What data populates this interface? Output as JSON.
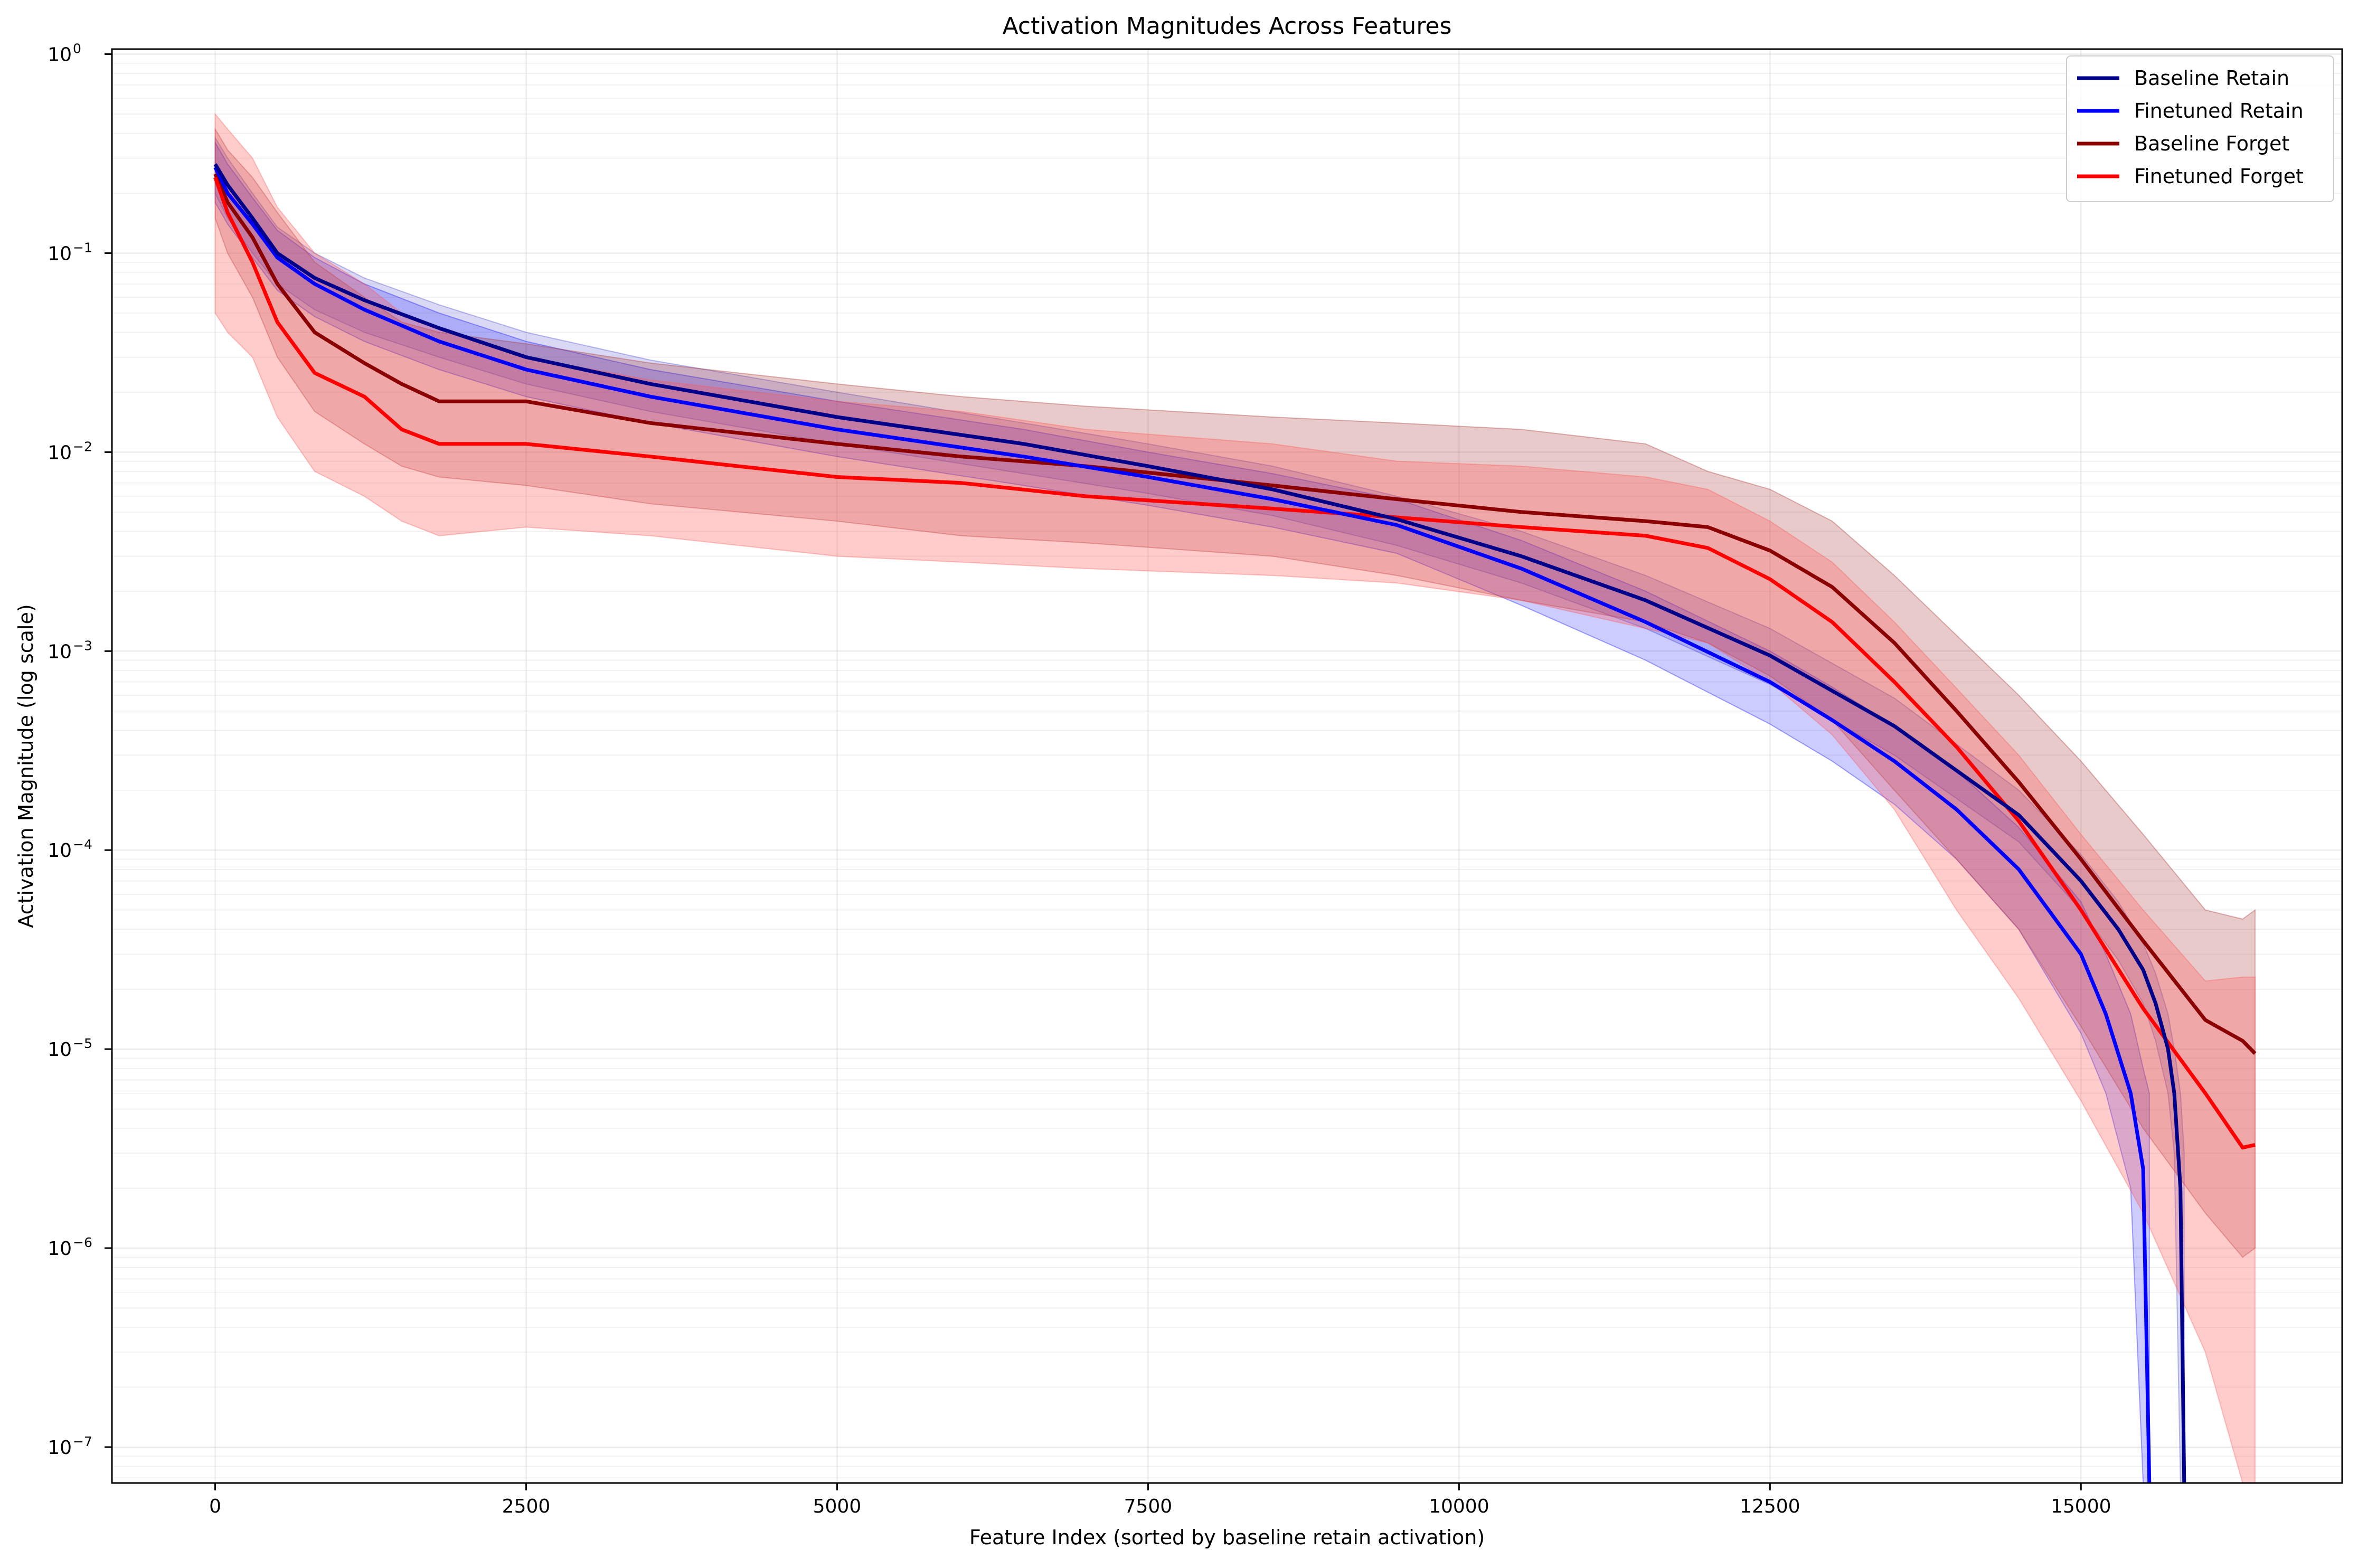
{
  "chart_data": {
    "type": "line",
    "title": "Activation Magnitudes Across Features",
    "xlabel": "Feature Index (sorted by baseline retain activation)",
    "ylabel": "Activation Magnitude (log scale)",
    "xlim": [
      -830,
      17100
    ],
    "ylim": [
      6.6e-08,
      1.06
    ],
    "yscale": "log",
    "grid": true,
    "legend_position": "upper-right",
    "x_ticks": [
      0,
      2500,
      5000,
      7500,
      10000,
      12500,
      15000
    ],
    "x_tick_labels": [
      "0",
      "2500",
      "5000",
      "7500",
      "10000",
      "12500",
      "15000"
    ],
    "y_ticks": [
      {
        "value": 1e-07,
        "base": "10",
        "exp": "−7"
      },
      {
        "value": 1e-06,
        "base": "10",
        "exp": "−6"
      },
      {
        "value": 1e-05,
        "base": "10",
        "exp": "−5"
      },
      {
        "value": 0.0001,
        "base": "10",
        "exp": "−4"
      },
      {
        "value": 0.001,
        "base": "10",
        "exp": "−3"
      },
      {
        "value": 0.01,
        "base": "10",
        "exp": "−2"
      },
      {
        "value": 0.1,
        "base": "10",
        "exp": "−1"
      },
      {
        "value": 1,
        "base": "10",
        "exp": "0"
      }
    ],
    "series": [
      {
        "name": "Baseline Retain",
        "color": "#00008b",
        "band_color": "#4040cc",
        "band_opacity": 0.2,
        "x": [
          0,
          100,
          300,
          500,
          800,
          1200,
          1800,
          2500,
          3500,
          5000,
          6500,
          7500,
          8500,
          9500,
          10500,
          11500,
          12500,
          13500,
          14500,
          15000,
          15300,
          15500,
          15600,
          15700,
          15750,
          15800,
          15830
        ],
        "y": [
          0.28,
          0.22,
          0.15,
          0.1,
          0.075,
          0.058,
          0.042,
          0.03,
          0.022,
          0.015,
          0.011,
          0.0085,
          0.0065,
          0.0046,
          0.003,
          0.0018,
          0.00095,
          0.00042,
          0.00015,
          7e-05,
          4e-05,
          2.5e-05,
          1.7e-05,
          1e-05,
          6e-06,
          2e-06,
          6.6e-08
        ],
        "lower": [
          0.2,
          0.15,
          0.1,
          0.07,
          0.052,
          0.04,
          0.03,
          0.022,
          0.016,
          0.011,
          0.0078,
          0.0062,
          0.0048,
          0.0034,
          0.0022,
          0.0013,
          0.00068,
          0.0003,
          0.00011,
          5e-05,
          2.8e-05,
          1.7e-05,
          1.1e-05,
          6e-06,
          3e-06,
          6.6e-08,
          6.6e-08
        ],
        "upper": [
          0.38,
          0.3,
          0.2,
          0.135,
          0.1,
          0.075,
          0.055,
          0.04,
          0.029,
          0.02,
          0.014,
          0.011,
          0.0085,
          0.006,
          0.004,
          0.0024,
          0.0013,
          0.00058,
          0.0002,
          9.5e-05,
          5.5e-05,
          3.4e-05,
          2.4e-05,
          1.5e-05,
          1e-05,
          6e-06,
          3e-06
        ]
      },
      {
        "name": "Finetuned Retain",
        "color": "#0000ff",
        "band_color": "#0000ff",
        "band_opacity": 0.2,
        "x": [
          0,
          100,
          300,
          500,
          800,
          1200,
          1800,
          2500,
          3500,
          5000,
          6500,
          7500,
          8500,
          9500,
          10500,
          11500,
          12500,
          13000,
          13500,
          14000,
          14500,
          15000,
          15200,
          15400,
          15500,
          15550
        ],
        "y": [
          0.27,
          0.2,
          0.14,
          0.095,
          0.07,
          0.052,
          0.036,
          0.026,
          0.019,
          0.013,
          0.0095,
          0.0075,
          0.0058,
          0.0043,
          0.0026,
          0.0014,
          0.0007,
          0.00045,
          0.00028,
          0.00016,
          8e-05,
          3e-05,
          1.5e-05,
          6e-06,
          2.5e-06,
          6.6e-08
        ],
        "lower": [
          0.18,
          0.14,
          0.095,
          0.065,
          0.048,
          0.036,
          0.026,
          0.019,
          0.014,
          0.0095,
          0.0068,
          0.0054,
          0.0042,
          0.0031,
          0.0017,
          0.0009,
          0.00043,
          0.00028,
          0.00017,
          9e-05,
          4e-05,
          1.2e-05,
          6e-06,
          2e-06,
          6.6e-08,
          6.6e-08
        ],
        "upper": [
          0.36,
          0.28,
          0.19,
          0.13,
          0.095,
          0.07,
          0.05,
          0.036,
          0.026,
          0.018,
          0.013,
          0.01,
          0.0078,
          0.0058,
          0.0036,
          0.002,
          0.001,
          0.00066,
          0.00042,
          0.00025,
          0.00013,
          5.5e-05,
          3e-05,
          1.5e-05,
          8e-06,
          6e-06
        ]
      },
      {
        "name": "Baseline Forget",
        "color": "#8b0000",
        "band_color": "#a52a2a",
        "band_opacity": 0.25,
        "x": [
          0,
          100,
          300,
          500,
          800,
          1200,
          1500,
          1800,
          2500,
          3500,
          5000,
          6000,
          7000,
          8500,
          9500,
          10500,
          11500,
          12000,
          12500,
          13000,
          13500,
          14000,
          14500,
          15000,
          15500,
          16000,
          16300,
          16400
        ],
        "y": [
          0.25,
          0.18,
          0.12,
          0.07,
          0.04,
          0.028,
          0.022,
          0.018,
          0.018,
          0.014,
          0.011,
          0.0095,
          0.0085,
          0.0068,
          0.0058,
          0.005,
          0.0045,
          0.0042,
          0.0032,
          0.0021,
          0.0011,
          0.0005,
          0.00022,
          9e-05,
          3.5e-05,
          1.4e-05,
          1.1e-05,
          9.5e-06
        ],
        "lower": [
          0.15,
          0.1,
          0.06,
          0.03,
          0.016,
          0.011,
          0.0085,
          0.0075,
          0.0068,
          0.0055,
          0.0045,
          0.0038,
          0.0035,
          0.003,
          0.0024,
          0.0018,
          0.0014,
          0.0011,
          0.00075,
          0.00045,
          0.0002,
          9e-05,
          4e-05,
          1.3e-05,
          4e-06,
          1.5e-06,
          9e-07,
          1e-06
        ],
        "upper": [
          0.42,
          0.33,
          0.24,
          0.16,
          0.09,
          0.06,
          0.045,
          0.04,
          0.035,
          0.028,
          0.022,
          0.019,
          0.017,
          0.015,
          0.014,
          0.013,
          0.011,
          0.008,
          0.0065,
          0.0045,
          0.0024,
          0.0012,
          0.0006,
          0.00028,
          0.00012,
          5e-05,
          4.5e-05,
          5e-05
        ]
      },
      {
        "name": "Finetuned Forget",
        "color": "#ff0000",
        "band_color": "#ff5555",
        "band_opacity": 0.3,
        "x": [
          0,
          100,
          300,
          500,
          800,
          1200,
          1500,
          1800,
          2500,
          3500,
          5000,
          6000,
          7000,
          8500,
          9500,
          10500,
          11500,
          12000,
          12500,
          13000,
          13500,
          14000,
          14500,
          15000,
          15500,
          16000,
          16300,
          16400
        ],
        "y": [
          0.24,
          0.16,
          0.09,
          0.045,
          0.025,
          0.019,
          0.013,
          0.011,
          0.011,
          0.0095,
          0.0075,
          0.007,
          0.006,
          0.0052,
          0.0047,
          0.0042,
          0.0038,
          0.0033,
          0.0023,
          0.0014,
          0.0007,
          0.00033,
          0.00014,
          5e-05,
          1.6e-05,
          6e-06,
          3.2e-06,
          3.3e-06
        ],
        "lower": [
          0.05,
          0.04,
          0.03,
          0.015,
          0.008,
          0.006,
          0.0045,
          0.0038,
          0.0042,
          0.0038,
          0.003,
          0.0028,
          0.0026,
          0.0024,
          0.0022,
          0.0018,
          0.0013,
          0.0011,
          0.0007,
          0.00038,
          0.00016,
          5e-05,
          1.8e-05,
          5.5e-06,
          1.5e-06,
          3e-07,
          6.6e-08,
          6.6e-08
        ],
        "upper": [
          0.5,
          0.42,
          0.3,
          0.17,
          0.1,
          0.07,
          0.05,
          0.042,
          0.03,
          0.023,
          0.018,
          0.016,
          0.013,
          0.011,
          0.009,
          0.0085,
          0.0075,
          0.0065,
          0.0045,
          0.0028,
          0.0014,
          0.00065,
          0.0003,
          0.00012,
          5e-05,
          2.2e-05,
          2.3e-05,
          2.3e-05
        ]
      }
    ]
  }
}
